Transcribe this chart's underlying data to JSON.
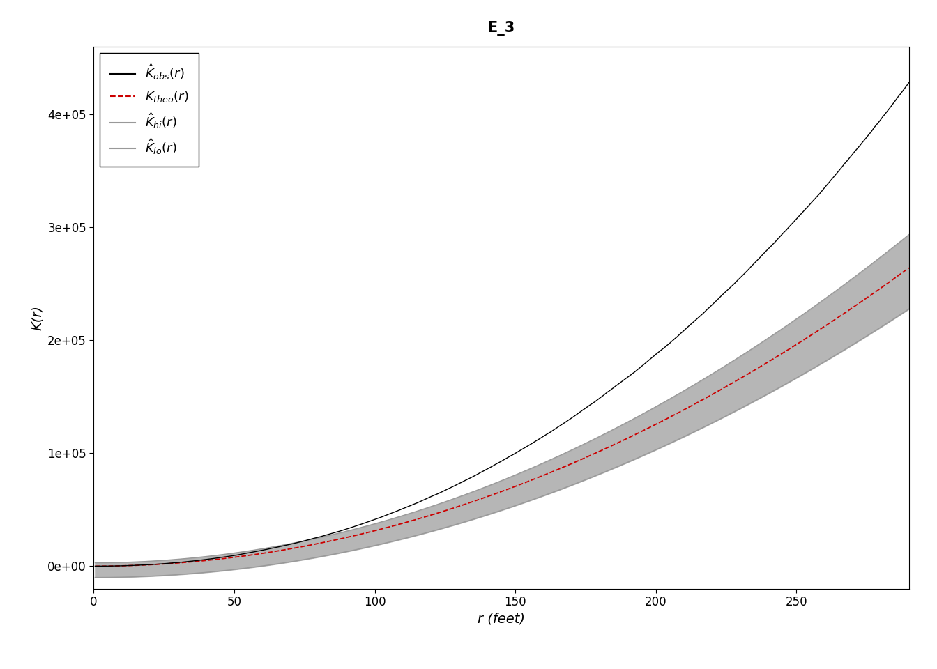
{
  "title": "E_3",
  "xlabel": "r (feet)",
  "ylabel": "K(r)",
  "r_min": 0,
  "r_max": 290,
  "xlim": [
    0,
    290
  ],
  "ylim": [
    -20000,
    460000
  ],
  "yticks": [
    0,
    100000,
    200000,
    300000,
    400000
  ],
  "xticks": [
    0,
    50,
    100,
    150,
    200,
    250
  ],
  "background_color": "#ffffff",
  "plot_bg_color": "#ffffff",
  "obs_color": "#000000",
  "theo_color": "#cc0000",
  "envelope_color": "#999999",
  "envelope_fill_color": "#aaaaaa",
  "envelope_fill_alpha": 0.85,
  "obs_linewidth": 1.0,
  "theo_linewidth": 1.3,
  "envelope_linewidth": 1.0,
  "title_fontsize": 15,
  "axis_label_fontsize": 14,
  "tick_fontsize": 12,
  "legend_fontsize": 13,
  "legend_loc": "upper left"
}
